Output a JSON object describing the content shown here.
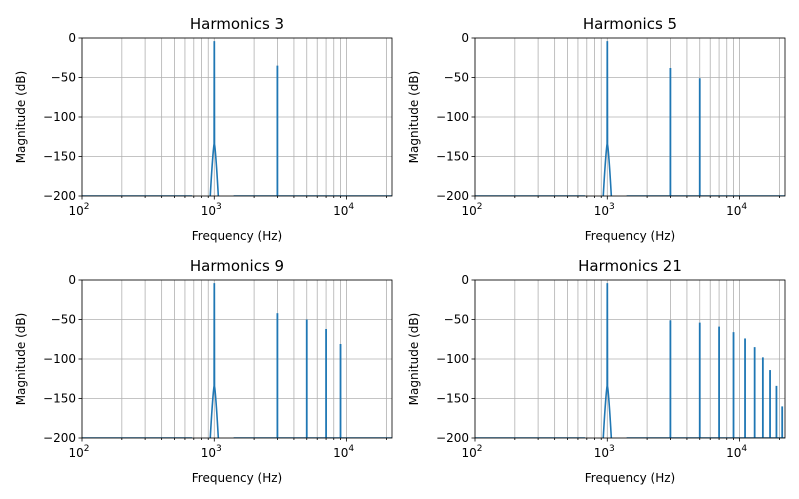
{
  "figure": {
    "panels": [
      {
        "id": "h3"
      },
      {
        "id": "h5"
      },
      {
        "id": "h9"
      },
      {
        "id": "h21"
      }
    ]
  },
  "chart_data": [
    {
      "type": "line",
      "title": "Harmonics 3",
      "xlabel": "Frequency (Hz)",
      "ylabel": "Magnitude (dB)",
      "xscale": "log",
      "xlim": [
        100,
        22050
      ],
      "ylim": [
        -200,
        0
      ],
      "grid": true,
      "xticks": [
        {
          "base": "10",
          "exp": "2"
        },
        {
          "base": "10",
          "exp": "3"
        },
        {
          "base": "10",
          "exp": "4"
        }
      ],
      "yticks": [
        "0",
        "−50",
        "−100",
        "−150",
        "−200"
      ],
      "color": "#1f77b4",
      "fundamental": {
        "x": 1000,
        "y": -5
      },
      "peaks": [
        {
          "x": 3000,
          "y": -35
        }
      ]
    },
    {
      "type": "line",
      "title": "Harmonics 5",
      "xlabel": "Frequency (Hz)",
      "ylabel": "Magnitude (dB)",
      "xscale": "log",
      "xlim": [
        100,
        22050
      ],
      "ylim": [
        -200,
        0
      ],
      "grid": true,
      "xticks": [
        {
          "base": "10",
          "exp": "2"
        },
        {
          "base": "10",
          "exp": "3"
        },
        {
          "base": "10",
          "exp": "4"
        }
      ],
      "yticks": [
        "0",
        "−50",
        "−100",
        "−150",
        "−200"
      ],
      "color": "#1f77b4",
      "fundamental": {
        "x": 1000,
        "y": -5
      },
      "peaks": [
        {
          "x": 3000,
          "y": -38
        },
        {
          "x": 5000,
          "y": -51
        }
      ]
    },
    {
      "type": "line",
      "title": "Harmonics 9",
      "xlabel": "Frequency (Hz)",
      "ylabel": "Magnitude (dB)",
      "xscale": "log",
      "xlim": [
        100,
        22050
      ],
      "ylim": [
        -200,
        0
      ],
      "grid": true,
      "xticks": [
        {
          "base": "10",
          "exp": "2"
        },
        {
          "base": "10",
          "exp": "3"
        },
        {
          "base": "10",
          "exp": "4"
        }
      ],
      "yticks": [
        "0",
        "−50",
        "−100",
        "−150",
        "−200"
      ],
      "color": "#1f77b4",
      "fundamental": {
        "x": 1000,
        "y": -5
      },
      "peaks": [
        {
          "x": 3000,
          "y": -42
        },
        {
          "x": 5000,
          "y": -50
        },
        {
          "x": 7000,
          "y": -62
        },
        {
          "x": 9000,
          "y": -81
        }
      ]
    },
    {
      "type": "line",
      "title": "Harmonics 21",
      "xlabel": "Frequency (Hz)",
      "ylabel": "Magnitude (dB)",
      "xscale": "log",
      "xlim": [
        100,
        22050
      ],
      "ylim": [
        -200,
        0
      ],
      "grid": true,
      "xticks": [
        {
          "base": "10",
          "exp": "2"
        },
        {
          "base": "10",
          "exp": "3"
        },
        {
          "base": "10",
          "exp": "4"
        }
      ],
      "yticks": [
        "0",
        "−50",
        "−100",
        "−150",
        "−200"
      ],
      "color": "#1f77b4",
      "fundamental": {
        "x": 1000,
        "y": -5
      },
      "peaks": [
        {
          "x": 3000,
          "y": -51
        },
        {
          "x": 5000,
          "y": -54
        },
        {
          "x": 7000,
          "y": -59
        },
        {
          "x": 9000,
          "y": -66
        },
        {
          "x": 11000,
          "y": -74
        },
        {
          "x": 13000,
          "y": -85
        },
        {
          "x": 15000,
          "y": -98
        },
        {
          "x": 17000,
          "y": -114
        },
        {
          "x": 19000,
          "y": -134
        },
        {
          "x": 21000,
          "y": -160
        }
      ]
    }
  ]
}
